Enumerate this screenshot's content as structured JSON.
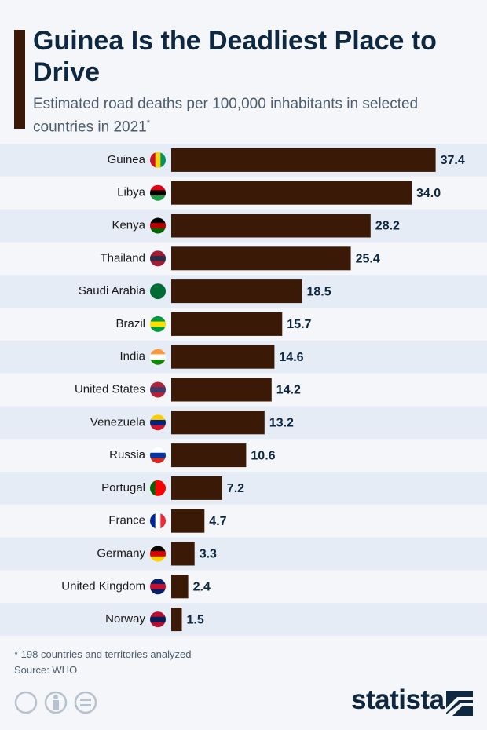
{
  "chart_data": {
    "type": "bar",
    "orientation": "horizontal",
    "title": "Guinea Is the Deadliest Place to Drive",
    "subtitle": "Estimated road deaths per 100,000 inhabitants in selected countries in 2021",
    "subtitle_note_mark": "*",
    "categories": [
      "Guinea",
      "Libya",
      "Kenya",
      "Thailand",
      "Saudi Arabia",
      "Brazil",
      "India",
      "United States",
      "Venezuela",
      "Russia",
      "Portugal",
      "France",
      "Germany",
      "United Kingdom",
      "Norway"
    ],
    "values": [
      37.4,
      34.0,
      28.2,
      25.4,
      18.5,
      15.7,
      14.6,
      14.2,
      13.2,
      10.6,
      7.2,
      4.7,
      3.3,
      2.4,
      1.5
    ],
    "value_labels": [
      "37.4",
      "34.0",
      "28.2",
      "25.4",
      "18.5",
      "15.7",
      "14.6",
      "14.2",
      "13.2",
      "10.6",
      "7.2",
      "4.7",
      "3.3",
      "2.4",
      "1.5"
    ],
    "color": "#3a1a06",
    "footnote": "* 198 countries and territories analyzed",
    "source": "Source: WHO",
    "brand": "statista"
  }
}
